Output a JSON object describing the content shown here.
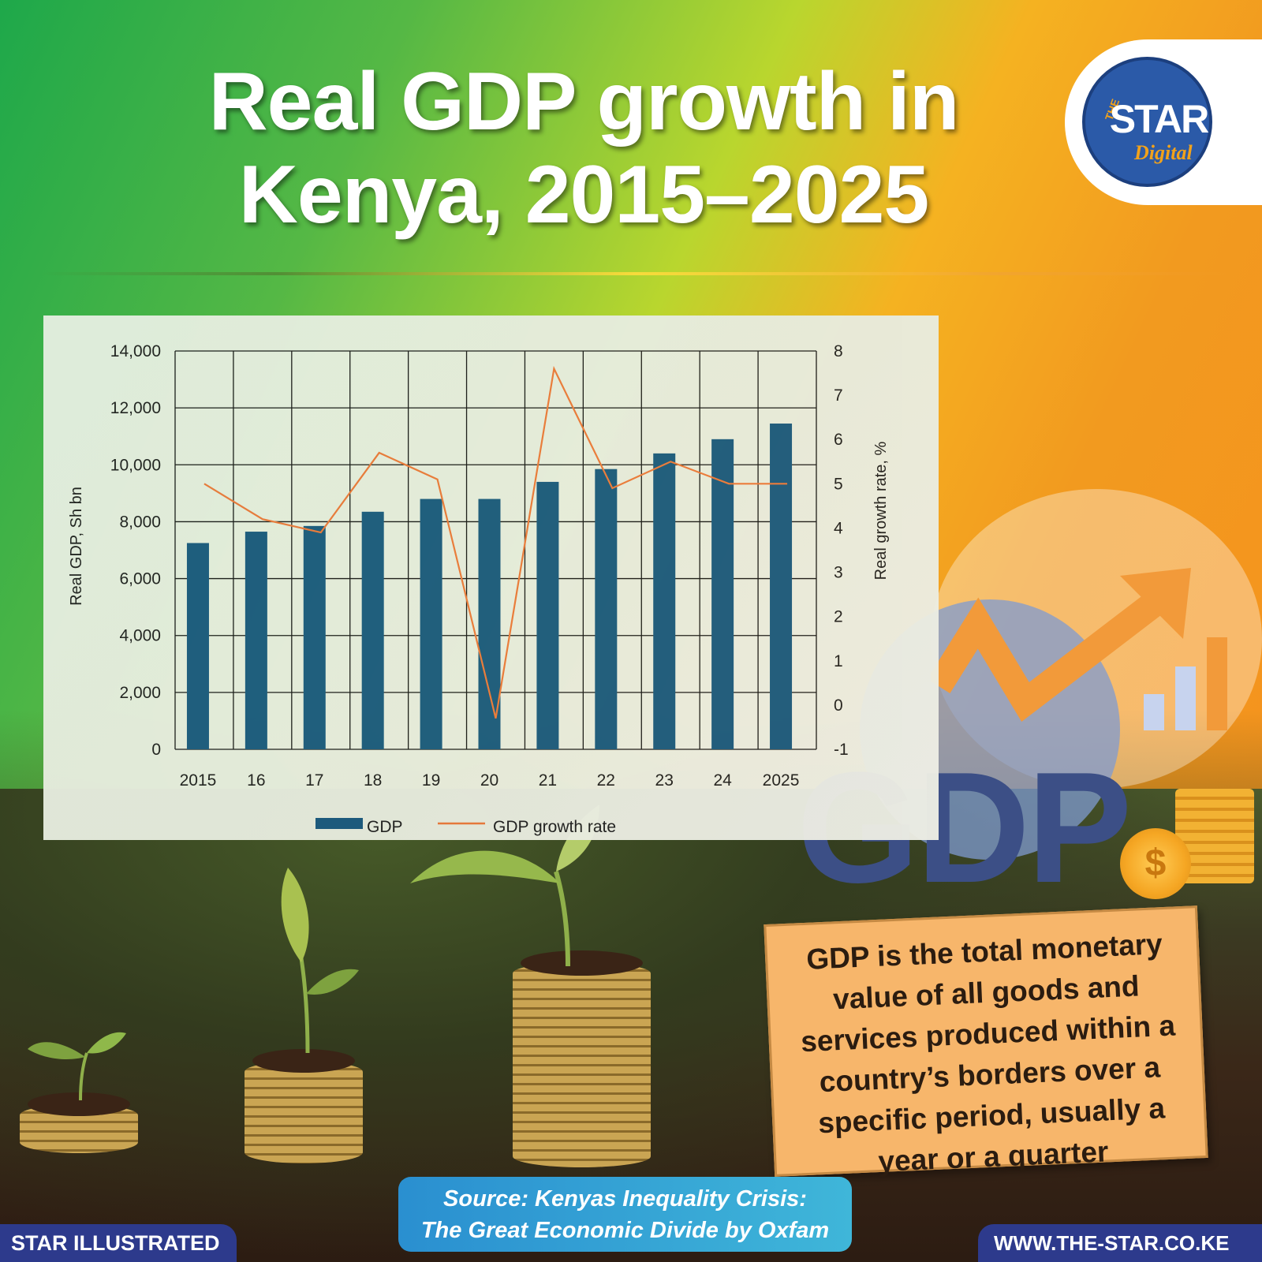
{
  "header": {
    "title": "Real GDP growth in Kenya, 2015–2025"
  },
  "logo": {
    "the": "THE",
    "star": "STAR",
    "digital": "Digital"
  },
  "illustration": {
    "gdp_text": "GDP",
    "coin_symbol": "$"
  },
  "definition": {
    "text": "GDP is the total monetary value of all goods and services produced within a country’s borders over a specific period, usually a year or a quarter"
  },
  "source": {
    "line1": "Source: Kenyas Inequality Crisis:",
    "line2": "The Great Economic Divide by Oxfam"
  },
  "footer": {
    "left": "STAR ILLUSTRATED",
    "right": "WWW.THE-STAR.CO.KE"
  },
  "colors": {
    "bar": "#1c5b80",
    "line": "#ec7a3c",
    "brand_blue": "#2d3a8c"
  },
  "chart_data": {
    "type": "bar",
    "categories": [
      "2015",
      "16",
      "17",
      "18",
      "19",
      "20",
      "21",
      "22",
      "23",
      "24",
      "2025"
    ],
    "series": [
      {
        "name": "GDP",
        "type": "bar",
        "axis": "left",
        "values": [
          7250,
          7650,
          7850,
          8350,
          8800,
          8800,
          9400,
          9850,
          10400,
          10900,
          11450
        ]
      },
      {
        "name": "GDP growth rate",
        "type": "line",
        "axis": "right",
        "values": [
          5.0,
          4.2,
          3.9,
          5.7,
          5.1,
          -0.3,
          7.6,
          4.9,
          5.5,
          5.0,
          5.0
        ]
      }
    ],
    "ylabel_left": "Real GDP, Sh bn",
    "ylabel_right": "Real growth rate, %",
    "ylim_left": [
      0,
      14000
    ],
    "ylim_right": [
      -1,
      8
    ],
    "yticks_left": [
      "14,000",
      "12,000",
      "10,000",
      "8,000",
      "6,000",
      "4,000",
      "2,000",
      "0"
    ],
    "yticks_right": [
      "8",
      "7",
      "6",
      "5",
      "4",
      "3",
      "2",
      "1",
      "0",
      "-1"
    ],
    "grid": true,
    "legend": "bottom-center"
  }
}
